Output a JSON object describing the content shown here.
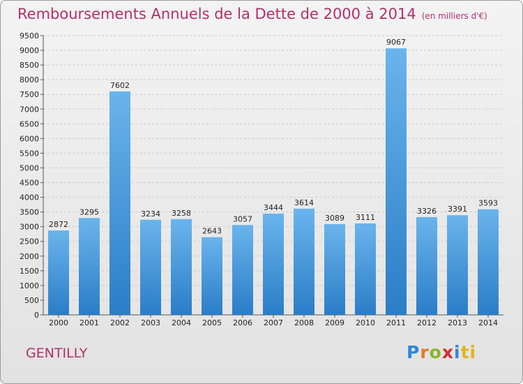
{
  "header": {
    "title": "Remboursements Annuels de la Dette de 2000 à 2014",
    "unit": "(en milliers d'€)"
  },
  "footer": {
    "city": "GENTILLY",
    "logo_letters": [
      "P",
      "r",
      "o",
      "x",
      "i",
      "ti"
    ]
  },
  "colors": {
    "title": "#b0306a",
    "bar_top": "#6ab4ec",
    "bar_bottom": "#2a7dc7"
  },
  "chart_data": {
    "type": "bar",
    "title": "Remboursements Annuels de la Dette de 2000 à 2014",
    "categories": [
      "2000",
      "2001",
      "2002",
      "2003",
      "2004",
      "2005",
      "2006",
      "2007",
      "2008",
      "2009",
      "2010",
      "2011",
      "2012",
      "2013",
      "2014"
    ],
    "values": [
      2872,
      3295,
      7602,
      3234,
      3258,
      2643,
      3057,
      3444,
      3614,
      3089,
      3111,
      9067,
      3326,
      3391,
      3593
    ],
    "ylim": [
      0,
      9500
    ],
    "yticks": [
      0,
      500,
      1000,
      1500,
      2000,
      2500,
      3000,
      3500,
      4000,
      4500,
      5000,
      5500,
      6000,
      6500,
      7000,
      7500,
      8000,
      8500,
      9000,
      9500
    ],
    "grid": true
  }
}
